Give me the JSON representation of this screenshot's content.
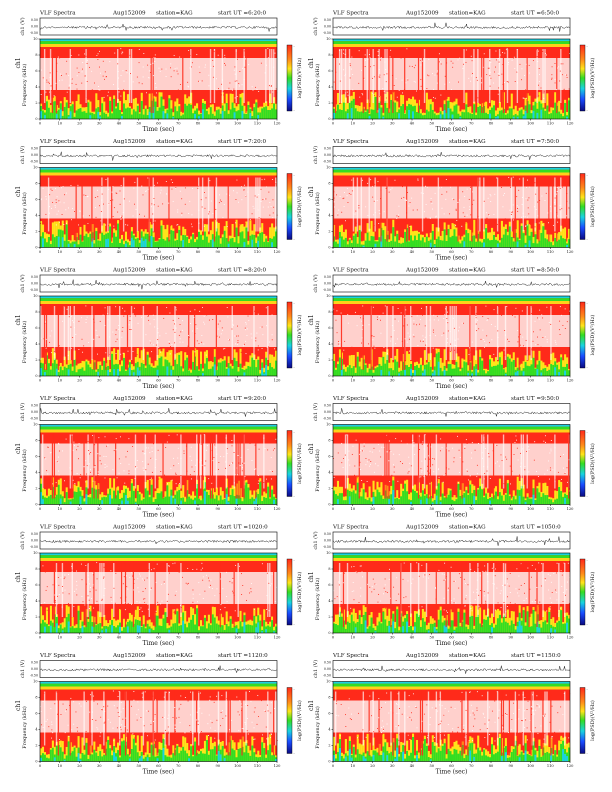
{
  "figure": {
    "header": {
      "left": "VLF Spectra",
      "date": "Aug152009",
      "station": "station=KAG",
      "start_prefix": "start  UT  ="
    },
    "axis_labels": {
      "ch_trace": "ch1 (V)",
      "spectrogram": "Frequency  (kHz)",
      "spectrogram_channel": "ch1",
      "x": "Time  (sec)",
      "colorbar": "log(PSD)(V²/Hz)"
    },
    "trace_ticks": [
      "0.00",
      "-0.50"
    ],
    "trace_top_tick": "0.50",
    "colorbar_ticks": [
      "-",
      "-"
    ],
    "colors": {
      "background": "#ffffff",
      "red": "#ff2a1a",
      "white": "#ffffff",
      "orange": "#ff8a1a",
      "yellow": "#ffe41a",
      "green": "#33dd22",
      "cyan": "#19d3e0",
      "blue": "#1a4cff",
      "navy": "#0a0a80"
    }
  },
  "chart_data": [
    {
      "type": "heatmap",
      "panel": "row1-left",
      "start_ut": "6:20:0",
      "x": {
        "label": "Time  (sec)",
        "range": [
          0,
          120
        ],
        "ticks": [
          0,
          10,
          20,
          30,
          40,
          50,
          60,
          70,
          80,
          90,
          100,
          110,
          120
        ]
      },
      "y": {
        "label": "Frequency  (kHz)",
        "range": [
          0,
          10
        ],
        "ticks": [
          0,
          2,
          4,
          6,
          8,
          10
        ]
      },
      "trace": {
        "label": "ch1 (V)",
        "ylim": [
          -0.5,
          0.5
        ]
      },
      "colorbar": "log(PSD)(V²/Hz)"
    },
    {
      "type": "heatmap",
      "panel": "row1-right",
      "start_ut": "6:50:0",
      "x": {
        "label": "Time  (sec)",
        "range": [
          0,
          120
        ],
        "ticks": [
          0,
          10,
          20,
          30,
          40,
          50,
          60,
          70,
          80,
          90,
          100,
          110,
          120
        ]
      },
      "y": {
        "label": "Frequency  (kHz)",
        "range": [
          0,
          10
        ],
        "ticks": [
          0,
          2,
          4,
          6,
          8,
          10
        ]
      },
      "trace": {
        "label": "ch1 (V)",
        "ylim": [
          -0.5,
          0.5
        ]
      },
      "colorbar": "log(PSD)(V²/Hz)"
    },
    {
      "type": "heatmap",
      "panel": "row2-left",
      "start_ut": "7:20:0",
      "x": {
        "label": "Time  (sec)",
        "range": [
          0,
          120
        ],
        "ticks": [
          0,
          10,
          20,
          30,
          40,
          50,
          60,
          70,
          80,
          90,
          100,
          110,
          120
        ]
      },
      "y": {
        "label": "Frequency  (kHz)",
        "range": [
          0,
          10
        ],
        "ticks": [
          0,
          2,
          4,
          6,
          8,
          10
        ]
      },
      "trace": {
        "label": "ch1 (V)",
        "ylim": [
          -0.5,
          0.5
        ]
      },
      "colorbar": "log(PSD)(V²/Hz)"
    },
    {
      "type": "heatmap",
      "panel": "row2-right",
      "start_ut": "7:50:0",
      "x": {
        "label": "Time  (sec)",
        "range": [
          0,
          120
        ],
        "ticks": [
          0,
          10,
          20,
          30,
          40,
          50,
          60,
          70,
          80,
          90,
          100,
          110,
          120
        ]
      },
      "y": {
        "label": "Frequency  (kHz)",
        "range": [
          0,
          10
        ],
        "ticks": [
          0,
          2,
          4,
          6,
          8,
          10
        ]
      },
      "trace": {
        "label": "ch1 (V)",
        "ylim": [
          -0.5,
          0.5
        ]
      },
      "colorbar": "log(PSD)(V²/Hz)"
    },
    {
      "type": "heatmap",
      "panel": "row3-left",
      "start_ut": "8:20:0",
      "x": {
        "label": "Time  (sec)",
        "range": [
          0,
          120
        ],
        "ticks": [
          0,
          10,
          20,
          30,
          40,
          50,
          60,
          70,
          80,
          90,
          100,
          110,
          120
        ]
      },
      "y": {
        "label": "Frequency  (kHz)",
        "range": [
          0,
          10
        ],
        "ticks": [
          0,
          2,
          4,
          6,
          8,
          10
        ]
      },
      "trace": {
        "label": "ch1 (V)",
        "ylim": [
          -0.5,
          0.5
        ]
      },
      "colorbar": "log(PSD)(V²/Hz)"
    },
    {
      "type": "heatmap",
      "panel": "row3-right",
      "start_ut": "8:50:0",
      "x": {
        "label": "Time  (sec)",
        "range": [
          0,
          120
        ],
        "ticks": [
          0,
          10,
          20,
          30,
          40,
          50,
          60,
          70,
          80,
          90,
          100,
          110,
          120
        ]
      },
      "y": {
        "label": "Frequency  (kHz)",
        "range": [
          0,
          10
        ],
        "ticks": [
          0,
          2,
          4,
          6,
          8,
          10
        ]
      },
      "trace": {
        "label": "ch1 (V)",
        "ylim": [
          -0.5,
          0.5
        ]
      },
      "colorbar": "log(PSD)(V²/Hz)"
    },
    {
      "type": "heatmap",
      "panel": "row4-left",
      "start_ut": "9:20:0",
      "x": {
        "label": "Time  (sec)",
        "range": [
          0,
          120
        ],
        "ticks": [
          0,
          10,
          20,
          30,
          40,
          50,
          60,
          70,
          80,
          90,
          100,
          110,
          120
        ]
      },
      "y": {
        "label": "Frequency  (kHz)",
        "range": [
          0,
          10
        ],
        "ticks": [
          0,
          2,
          4,
          6,
          8,
          10
        ]
      },
      "trace": {
        "label": "ch1 (V)",
        "ylim": [
          -0.5,
          0.5
        ]
      },
      "colorbar": "log(PSD)(V²/Hz)"
    },
    {
      "type": "heatmap",
      "panel": "row4-right",
      "start_ut": "9:50:0",
      "x": {
        "label": "Time  (sec)",
        "range": [
          0,
          120
        ],
        "ticks": [
          0,
          10,
          20,
          30,
          40,
          50,
          60,
          70,
          80,
          90,
          100,
          110,
          120
        ]
      },
      "y": {
        "label": "Frequency  (kHz)",
        "range": [
          0,
          10
        ],
        "ticks": [
          0,
          2,
          4,
          6,
          8,
          10
        ]
      },
      "trace": {
        "label": "ch1 (V)",
        "ylim": [
          -0.5,
          0.5
        ]
      },
      "colorbar": "log(PSD)(V²/Hz)"
    },
    {
      "type": "heatmap",
      "panel": "row5-left",
      "start_ut": "1020:0",
      "x": {
        "label": "Time  (sec)",
        "range": [
          0,
          120
        ],
        "ticks": [
          0,
          10,
          20,
          30,
          40,
          50,
          60,
          70,
          80,
          90,
          100,
          110,
          120
        ]
      },
      "y": {
        "label": "Frequency  (kHz)",
        "range": [
          0,
          10
        ],
        "ticks": [
          0,
          2,
          4,
          6,
          8,
          10
        ]
      },
      "trace": {
        "label": "ch1 (V)",
        "ylim": [
          -0.5,
          0.5
        ]
      },
      "colorbar": "log(PSD)(V²/Hz)"
    },
    {
      "type": "heatmap",
      "panel": "row5-right",
      "start_ut": "1050:0",
      "x": {
        "label": "Time  (sec)",
        "range": [
          0,
          120
        ],
        "ticks": [
          0,
          10,
          20,
          30,
          40,
          50,
          60,
          70,
          80,
          90,
          100,
          110,
          120
        ]
      },
      "y": {
        "label": "Frequency  (kHz)",
        "range": [
          0,
          10
        ],
        "ticks": [
          0,
          2,
          4,
          6,
          8,
          10
        ]
      },
      "trace": {
        "label": "ch1 (V)",
        "ylim": [
          -0.5,
          0.5
        ]
      },
      "colorbar": "log(PSD)(V²/Hz)"
    },
    {
      "type": "heatmap",
      "panel": "row6-left",
      "start_ut": "1120:0",
      "x": {
        "label": "Time  (sec)",
        "range": [
          0,
          120
        ],
        "ticks": [
          0,
          10,
          20,
          30,
          40,
          50,
          60,
          70,
          80,
          90,
          100,
          110,
          120
        ]
      },
      "y": {
        "label": "Frequency  (kHz)",
        "range": [
          0,
          10
        ],
        "ticks": [
          0,
          2,
          4,
          6,
          8,
          10
        ]
      },
      "trace": {
        "label": "ch1 (V)",
        "ylim": [
          -0.5,
          0.5
        ]
      },
      "colorbar": "log(PSD)(V²/Hz)"
    },
    {
      "type": "heatmap",
      "panel": "row6-right",
      "start_ut": "1150:0",
      "x": {
        "label": "Time  (sec)",
        "range": [
          0,
          120
        ],
        "ticks": [
          0,
          10,
          20,
          30,
          40,
          50,
          60,
          70,
          80,
          90,
          100,
          110,
          120
        ]
      },
      "y": {
        "label": "Frequency  (kHz)",
        "range": [
          0,
          10
        ],
        "ticks": [
          0,
          2,
          4,
          6,
          8,
          10
        ]
      },
      "trace": {
        "label": "ch1 (V)",
        "ylim": [
          -0.5,
          0.5
        ]
      },
      "colorbar": "log(PSD)(V²/Hz)"
    }
  ]
}
